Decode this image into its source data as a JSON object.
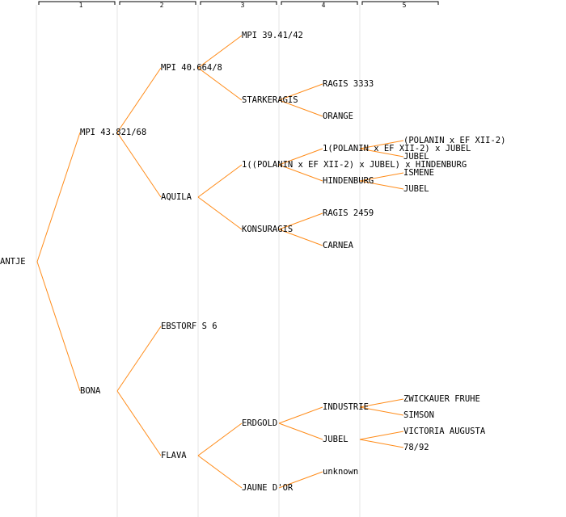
{
  "columns": [
    "1",
    "2",
    "3",
    "4",
    "5"
  ],
  "colors": {
    "line": "#ff8c1a",
    "colSep": "#e6e6e6",
    "header": "#000000"
  },
  "tree": {
    "label": "ANTJE",
    "children": [
      {
        "label": "MPI 43.821/68",
        "children": [
          {
            "label": "MPI 40.664/8",
            "children": [
              {
                "label": "MPI 39.41/42"
              },
              {
                "label": "STARKERAGIS",
                "children": [
                  {
                    "label": "RAGIS 3333"
                  },
                  {
                    "label": "ORANGE"
                  }
                ]
              }
            ]
          },
          {
            "label": "AQUILA",
            "children": [
              {
                "label": "1((POLANIN x EF XII-2) x JUBEL) x HINDENBURG",
                "children": [
                  {
                    "label": "1(POLANIN x EF XII-2) x JUBEL",
                    "children": [
                      {
                        "label": "(POLANIN x EF XII-2)"
                      },
                      {
                        "label": "JUBEL"
                      }
                    ]
                  },
                  {
                    "label": "HINDENBURG",
                    "children": [
                      {
                        "label": "ISMENE"
                      },
                      {
                        "label": "JUBEL"
                      }
                    ]
                  }
                ]
              },
              {
                "label": "KONSURAGIS",
                "children": [
                  {
                    "label": "RAGIS 2459"
                  },
                  {
                    "label": "CARNEA"
                  }
                ]
              }
            ]
          }
        ]
      },
      {
        "label": "BONA",
        "children": [
          {
            "label": "EBSTORF S 6"
          },
          {
            "label": "FLAVA",
            "children": [
              {
                "label": "ERDGOLD",
                "children": [
                  {
                    "label": "INDUSTRIE",
                    "children": [
                      {
                        "label": "ZWICKAUER FRUHE"
                      },
                      {
                        "label": "SIMSON"
                      }
                    ]
                  },
                  {
                    "label": "JUBEL",
                    "children": [
                      {
                        "label": "VICTORIA AUGUSTA"
                      },
                      {
                        "label": "78/92"
                      }
                    ]
                  }
                ]
              },
              {
                "label": "JAUNE D'OR",
                "children": [
                  {
                    "label": "unknown"
                  }
                ]
              }
            ]
          }
        ]
      }
    ]
  }
}
